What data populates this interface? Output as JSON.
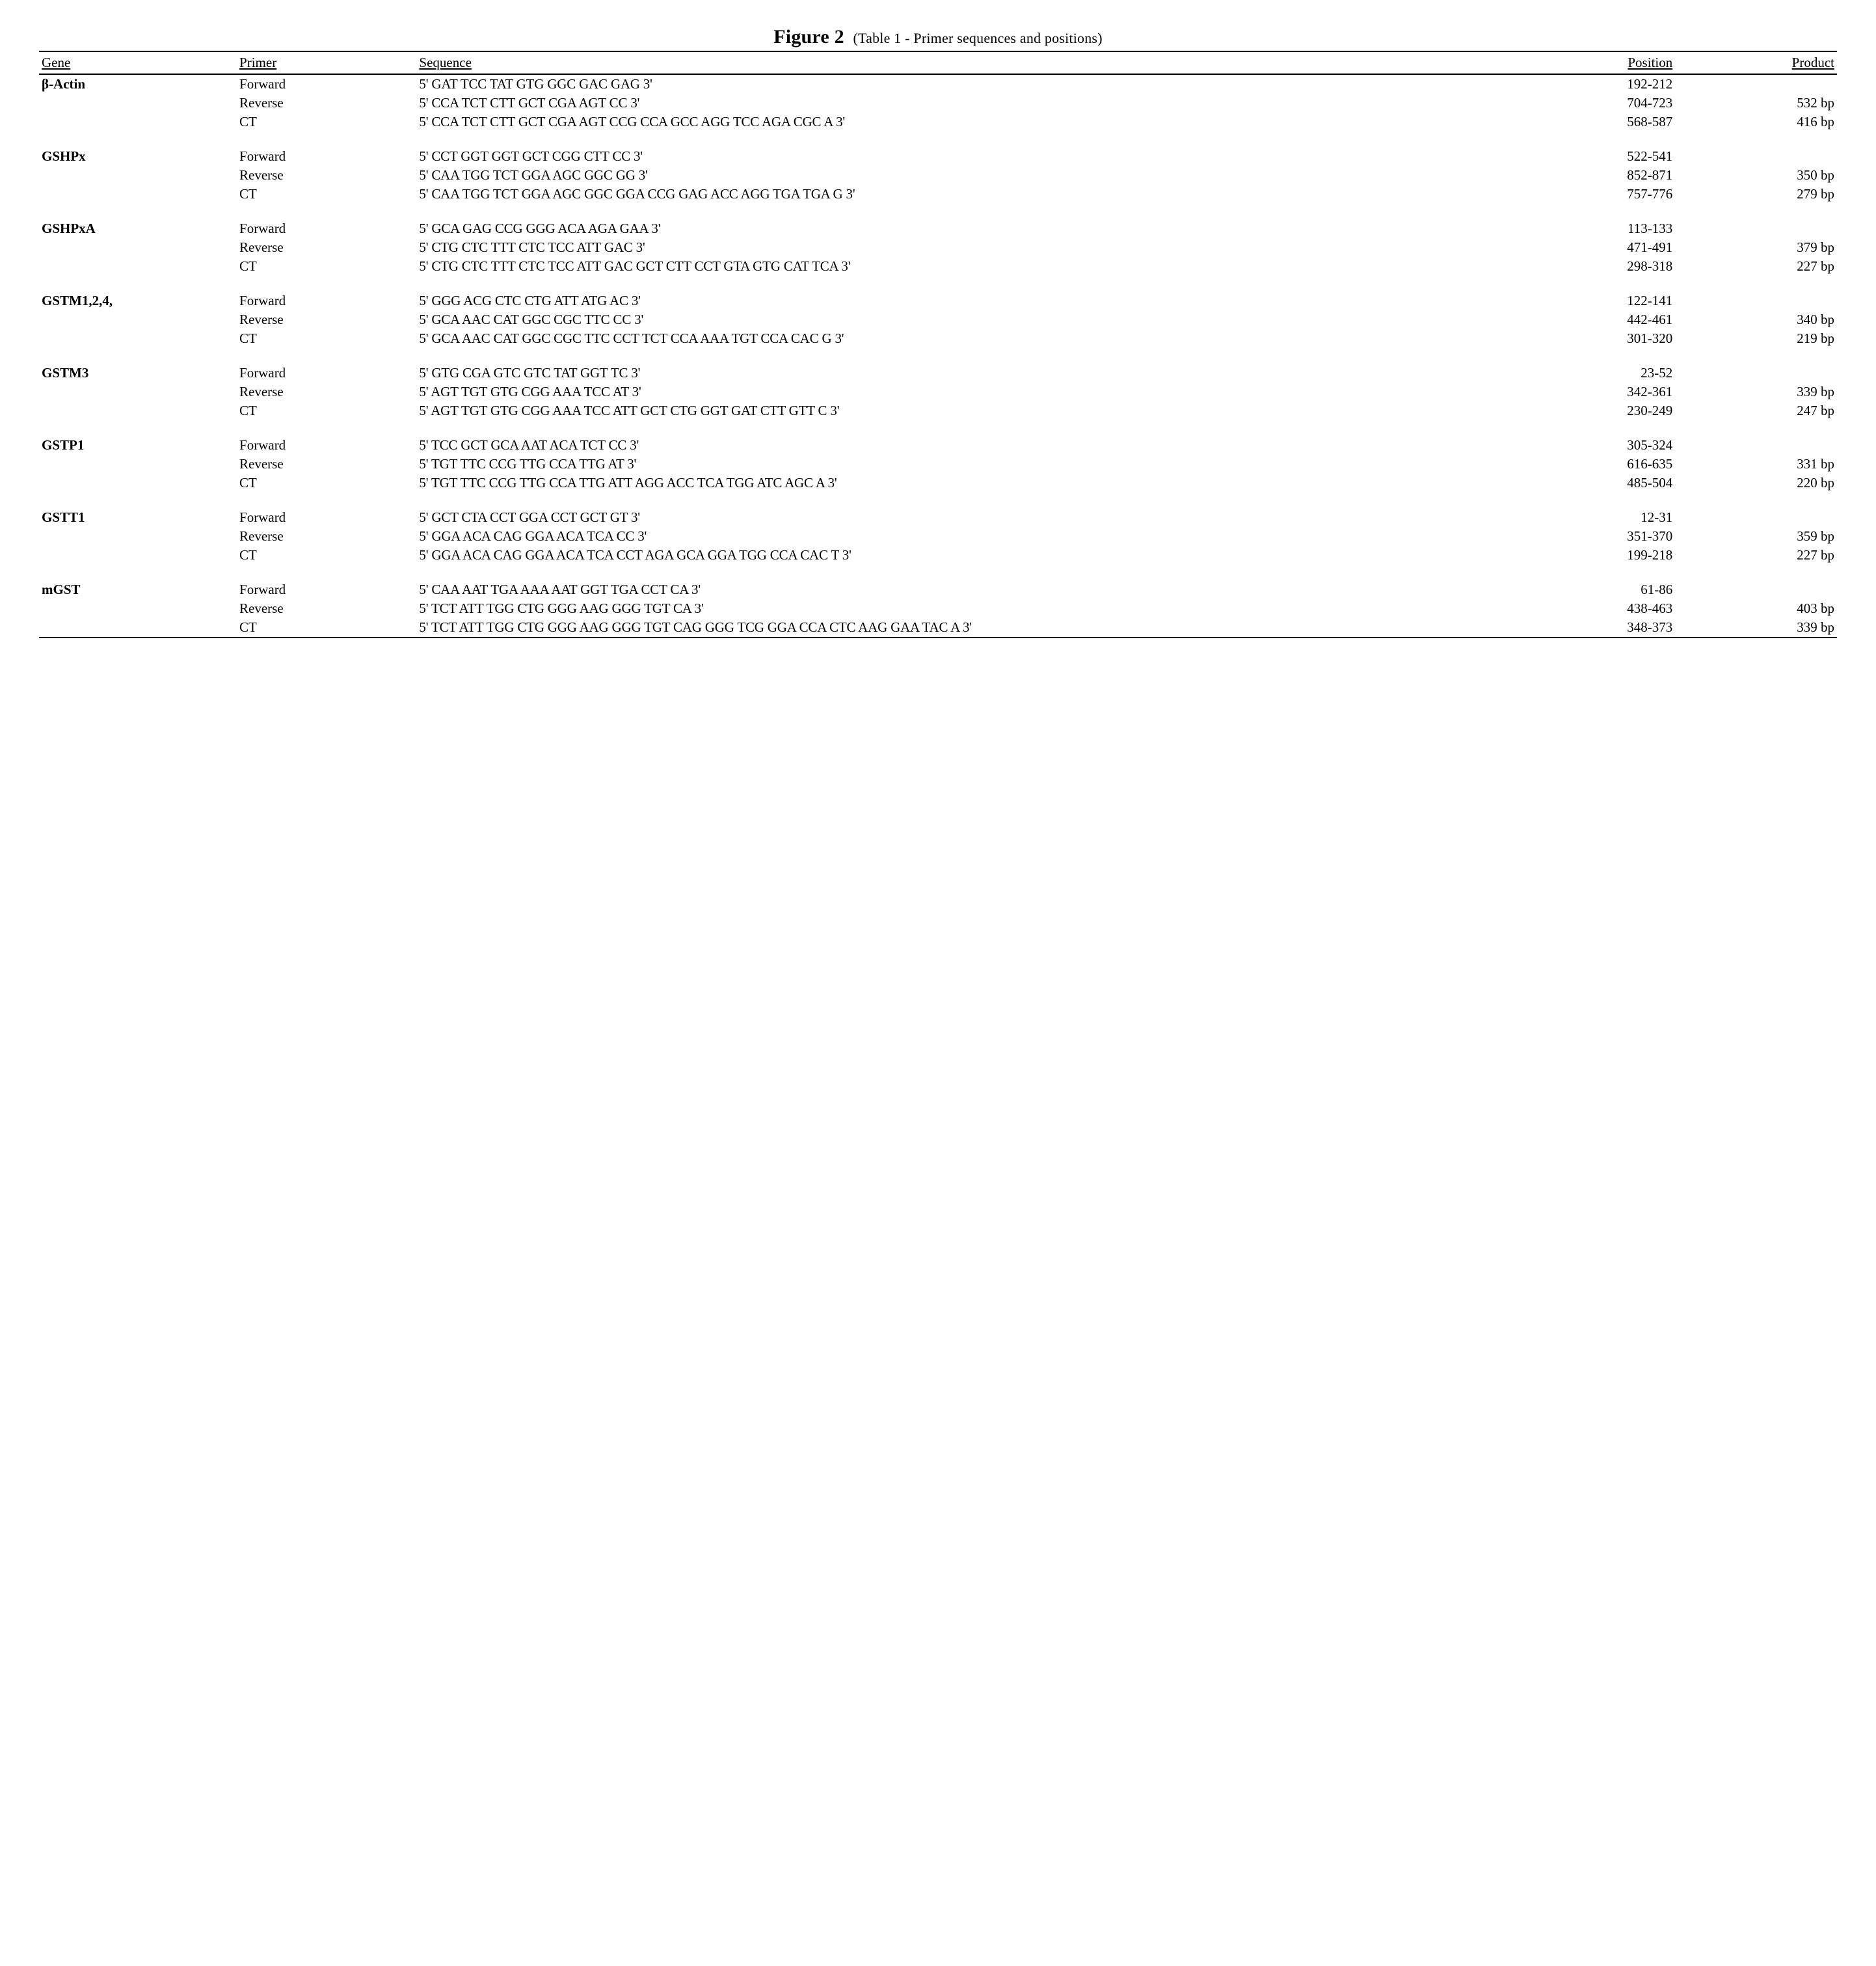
{
  "figure": {
    "title_main": "Figure 2",
    "title_paren": "(Table 1 - Primer sequences and positions)"
  },
  "columns": {
    "gene": "Gene",
    "primer": "Primer",
    "sequence": "Sequence",
    "position": "Position",
    "product": "Product"
  },
  "genes": [
    {
      "name": "β-Actin",
      "rows": [
        {
          "primer": "Forward",
          "sequence": "5' GAT TCC TAT GTG GGC GAC GAG 3'",
          "position": "192-212",
          "product": ""
        },
        {
          "primer": "Reverse",
          "sequence": "5' CCA TCT CTT GCT CGA AGT CC 3'",
          "position": "704-723",
          "product": "532 bp"
        },
        {
          "primer": "CT",
          "sequence": "5' CCA TCT CTT GCT CGA AGT CCG CCA GCC AGG TCC AGA CGC A 3'",
          "position": "568-587",
          "product": "416 bp"
        }
      ]
    },
    {
      "name": "GSHPx",
      "rows": [
        {
          "primer": "Forward",
          "sequence": "5' CCT GGT GGT GCT CGG CTT CC 3'",
          "position": "522-541",
          "product": ""
        },
        {
          "primer": "Reverse",
          "sequence": "5' CAA TGG TCT GGA AGC GGC GG 3'",
          "position": "852-871",
          "product": "350 bp"
        },
        {
          "primer": "CT",
          "sequence": "5' CAA TGG TCT GGA AGC GGC GGA CCG GAG ACC AGG TGA TGA G 3'",
          "position": "757-776",
          "product": "279 bp"
        }
      ]
    },
    {
      "name": "GSHPxA",
      "rows": [
        {
          "primer": "Forward",
          "sequence": "5' GCA GAG CCG GGG ACA AGA GAA 3'",
          "position": "113-133",
          "product": ""
        },
        {
          "primer": "Reverse",
          "sequence": "5' CTG CTC TTT CTC TCC ATT GAC 3'",
          "position": "471-491",
          "product": "379 bp"
        },
        {
          "primer": "CT",
          "sequence": "5' CTG CTC TTT CTC TCC ATT GAC GCT CTT CCT GTA GTG CAT TCA 3'",
          "position": "298-318",
          "product": "227 bp"
        }
      ]
    },
    {
      "name": "GSTM1,2,4,",
      "rows": [
        {
          "primer": "Forward",
          "sequence": "5' GGG ACG CTC CTG ATT ATG AC 3'",
          "position": "122-141",
          "product": ""
        },
        {
          "primer": "Reverse",
          "sequence": "5' GCA AAC CAT GGC CGC TTC CC 3'",
          "position": "442-461",
          "product": "340 bp"
        },
        {
          "primer": "CT",
          "sequence": "5' GCA AAC CAT GGC CGC TTC CCT TCT CCA AAA TGT CCA CAC G 3'",
          "position": "301-320",
          "product": "219 bp"
        }
      ]
    },
    {
      "name": "GSTM3",
      "rows": [
        {
          "primer": "Forward",
          "sequence": "5' GTG CGA GTC GTC TAT GGT TC 3'",
          "position": "23-52",
          "product": ""
        },
        {
          "primer": "Reverse",
          "sequence": "5' AGT TGT GTG CGG AAA TCC AT 3'",
          "position": "342-361",
          "product": "339 bp"
        },
        {
          "primer": "CT",
          "sequence": "5' AGT TGT GTG CGG AAA TCC ATT GCT CTG GGT GAT CTT GTT C 3'",
          "position": "230-249",
          "product": "247 bp"
        }
      ]
    },
    {
      "name": "GSTP1",
      "rows": [
        {
          "primer": "Forward",
          "sequence": "5' TCC GCT GCA AAT ACA TCT CC 3'",
          "position": "305-324",
          "product": ""
        },
        {
          "primer": "Reverse",
          "sequence": "5' TGT TTC CCG TTG CCA TTG AT 3'",
          "position": "616-635",
          "product": "331 bp"
        },
        {
          "primer": "CT",
          "sequence": "5' TGT TTC CCG TTG CCA TTG ATT AGG ACC TCA TGG ATC AGC A 3'",
          "position": "485-504",
          "product": "220 bp"
        }
      ]
    },
    {
      "name": "GSTT1",
      "rows": [
        {
          "primer": "Forward",
          "sequence": "5' GCT CTA CCT GGA CCT GCT GT 3'",
          "position": "12-31",
          "product": ""
        },
        {
          "primer": "Reverse",
          "sequence": "5' GGA ACA CAG GGA ACA TCA CC 3'",
          "position": "351-370",
          "product": "359 bp"
        },
        {
          "primer": "CT",
          "sequence": "5' GGA ACA CAG GGA ACA TCA CCT AGA GCA GGA TGG CCA CAC T 3'",
          "position": "199-218",
          "product": "227 bp"
        }
      ]
    },
    {
      "name": "mGST",
      "rows": [
        {
          "primer": "Forward",
          "sequence": "5' CAA AAT TGA AAA AAT GGT TGA CCT CA 3'",
          "position": "61-86",
          "product": ""
        },
        {
          "primer": "Reverse",
          "sequence": "5' TCT ATT TGG CTG GGG AAG GGG TGT CA 3'",
          "position": "438-463",
          "product": "403 bp"
        },
        {
          "primer": "CT",
          "sequence": "5' TCT ATT TGG CTG GGG AAG GGG TGT CAG GGG TCG GGA CCA CTC AAG GAA TAC A 3'",
          "position": "348-373",
          "product": "339 bp"
        }
      ]
    }
  ]
}
